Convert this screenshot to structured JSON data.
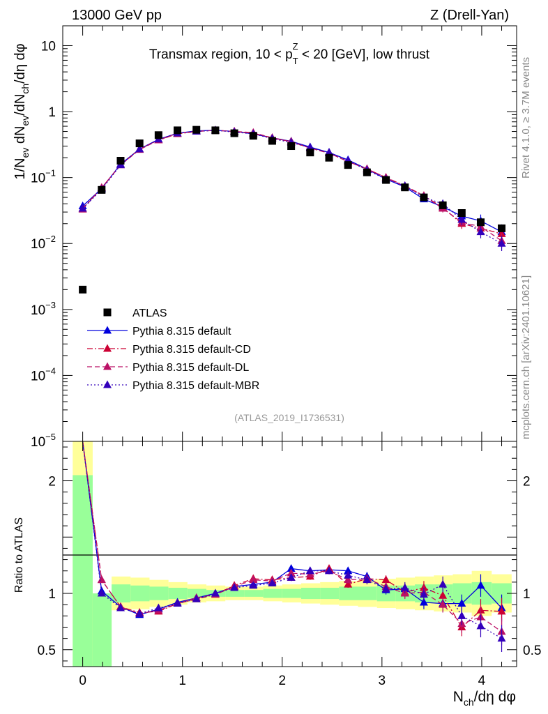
{
  "header": {
    "left": "13000 GeV pp",
    "right": "Z (Drell-Yan)"
  },
  "side_labels": {
    "rivet": "Rivet 4.1.0, ≥ 3.7M events",
    "mcplots": "mcplots.cern.ch [arXiv:2401.10621]"
  },
  "chart_data": [
    {
      "type": "scatter",
      "panel": "main",
      "title": "Transmax region, 10 < p_T^Z < 20 [GeV], low thrust",
      "title_parts": {
        "pre": "Transmax region, 10 < p",
        "sub": "T",
        "sup": "Z",
        "post": " < 20 [GeV], low thrust"
      },
      "analysis_tag": "(ATLAS_2019_I1736531)",
      "ylabel": "1/N_ev dN_ev/dN_ch/dη dφ",
      "ylabel_parts": {
        "a": "1/N",
        "a_sub": "ev",
        "b": " dN",
        "b_sub": "ev",
        "c": "/dN",
        "c_sub": "ch",
        "d": "/dη dφ"
      },
      "yscale": "log",
      "ylim": [
        1e-05,
        20
      ],
      "xlim": [
        -0.2,
        4.35
      ],
      "ytick_labels": [
        {
          "value": 10,
          "base": "10",
          "exp": ""
        },
        {
          "value": 1,
          "base": "1",
          "exp": ""
        },
        {
          "value": 0.1,
          "base": "10",
          "exp": "−1"
        },
        {
          "value": 0.01,
          "base": "10",
          "exp": "−2"
        },
        {
          "value": 0.001,
          "base": "10",
          "exp": "−3"
        },
        {
          "value": 0.0001,
          "base": "10",
          "exp": "−4"
        },
        {
          "value": 1e-05,
          "base": "10",
          "exp": "−5"
        }
      ],
      "legend_position": "lower-left",
      "series": [
        {
          "name": "ATLAS",
          "color": "#000000",
          "marker": "square",
          "line": "none",
          "x": [
            0.0,
            0.19,
            0.38,
            0.57,
            0.76,
            0.95,
            1.14,
            1.33,
            1.52,
            1.71,
            1.9,
            2.09,
            2.28,
            2.47,
            2.66,
            2.85,
            3.04,
            3.23,
            3.42,
            3.61,
            3.8,
            3.99,
            4.2
          ],
          "y": [
            0.002,
            0.065,
            0.18,
            0.33,
            0.44,
            0.52,
            0.53,
            0.52,
            0.47,
            0.43,
            0.36,
            0.3,
            0.24,
            0.2,
            0.155,
            0.12,
            0.092,
            0.071,
            0.05,
            0.038,
            0.029,
            0.021,
            0.017
          ]
        },
        {
          "name": "Pythia 8.315 default",
          "color": "#0000dd",
          "marker": "triangle",
          "line": "solid",
          "x": [
            0.0,
            0.19,
            0.38,
            0.57,
            0.76,
            0.95,
            1.14,
            1.33,
            1.52,
            1.71,
            1.9,
            2.09,
            2.28,
            2.47,
            2.66,
            2.85,
            3.04,
            3.23,
            3.42,
            3.61,
            3.8,
            3.99,
            4.2
          ],
          "y": [
            0.037,
            0.068,
            0.16,
            0.27,
            0.38,
            0.47,
            0.51,
            0.52,
            0.5,
            0.46,
            0.4,
            0.355,
            0.29,
            0.24,
            0.185,
            0.135,
            0.095,
            0.072,
            0.047,
            0.036,
            0.026,
            0.022,
            0.015
          ]
        },
        {
          "name": "Pythia 8.315 default-CD",
          "color": "#cc0033",
          "marker": "triangle",
          "line": "dashdot",
          "x": [
            0.0,
            0.19,
            0.38,
            0.57,
            0.76,
            0.95,
            1.14,
            1.33,
            1.52,
            1.71,
            1.9,
            2.09,
            2.28,
            2.47,
            2.66,
            2.85,
            3.04,
            3.23,
            3.42,
            3.61,
            3.8,
            3.99,
            4.2
          ],
          "y": [
            0.034,
            0.07,
            0.155,
            0.27,
            0.37,
            0.46,
            0.5,
            0.52,
            0.5,
            0.47,
            0.4,
            0.35,
            0.28,
            0.235,
            0.175,
            0.135,
            0.1,
            0.075,
            0.053,
            0.035,
            0.02,
            0.017,
            0.014
          ]
        },
        {
          "name": "Pythia 8.315 default-DL",
          "color": "#bb1166",
          "marker": "triangle",
          "line": "dashed",
          "x": [
            0.0,
            0.19,
            0.38,
            0.57,
            0.76,
            0.95,
            1.14,
            1.33,
            1.52,
            1.71,
            1.9,
            2.09,
            2.28,
            2.47,
            2.66,
            2.85,
            3.04,
            3.23,
            3.42,
            3.61,
            3.8,
            3.99,
            4.2
          ],
          "y": [
            0.033,
            0.07,
            0.155,
            0.265,
            0.37,
            0.47,
            0.5,
            0.52,
            0.5,
            0.48,
            0.4,
            0.35,
            0.28,
            0.235,
            0.175,
            0.135,
            0.1,
            0.073,
            0.053,
            0.034,
            0.021,
            0.018,
            0.011
          ]
        },
        {
          "name": "Pythia 8.315 default-MBR",
          "color": "#3300bb",
          "marker": "triangle",
          "line": "dotted",
          "x": [
            0.0,
            0.19,
            0.38,
            0.57,
            0.76,
            0.95,
            1.14,
            1.33,
            1.52,
            1.71,
            1.9,
            2.09,
            2.28,
            2.47,
            2.66,
            2.85,
            3.04,
            3.23,
            3.42,
            3.61,
            3.8,
            3.99,
            4.2
          ],
          "y": [
            0.034,
            0.066,
            0.155,
            0.27,
            0.38,
            0.47,
            0.5,
            0.52,
            0.49,
            0.46,
            0.39,
            0.34,
            0.285,
            0.24,
            0.18,
            0.13,
            0.095,
            0.075,
            0.05,
            0.04,
            0.023,
            0.015,
            0.01
          ]
        }
      ]
    },
    {
      "type": "scatter",
      "panel": "ratio",
      "ylabel": "Ratio to ATLAS",
      "xlabel": "N_ch/dη dφ",
      "xlabel_parts": {
        "a": "N",
        "a_sub": "ch",
        "b": "/dη dφ"
      },
      "ylim": [
        0.35,
        2.35
      ],
      "xlim": [
        -0.2,
        4.35
      ],
      "xticks": [
        0,
        1,
        2,
        3,
        4
      ],
      "xtick_labels": [
        "0",
        "1",
        "2",
        "3",
        "4"
      ],
      "yticks": [
        0.5,
        1,
        2
      ],
      "ytick_labels": [
        "0.5",
        "1",
        "2"
      ],
      "reference_line": 1,
      "band_colors": {
        "inner": "#99ff99",
        "outer": "#ffff99"
      },
      "bands": {
        "edges": [
          -0.1,
          0.1,
          0.29,
          0.48,
          0.67,
          0.86,
          1.05,
          1.24,
          1.43,
          1.62,
          1.81,
          2.0,
          2.19,
          2.38,
          2.57,
          2.76,
          2.95,
          3.14,
          3.33,
          3.52,
          3.71,
          3.9,
          4.1,
          4.3
        ],
        "inner_lo": [
          0.35,
          0.35,
          0.92,
          0.93,
          0.94,
          0.95,
          0.96,
          0.97,
          0.97,
          0.97,
          0.96,
          0.96,
          0.95,
          0.95,
          0.94,
          0.94,
          0.93,
          0.93,
          0.92,
          0.92,
          0.91,
          0.9,
          0.91
        ],
        "inner_hi": [
          2.05,
          1.0,
          1.08,
          1.07,
          1.06,
          1.05,
          1.04,
          1.03,
          1.03,
          1.03,
          1.04,
          1.04,
          1.05,
          1.05,
          1.06,
          1.06,
          1.07,
          1.07,
          1.08,
          1.08,
          1.09,
          1.1,
          1.09
        ],
        "outer_lo": [
          0.35,
          0.35,
          0.85,
          0.86,
          0.88,
          0.9,
          0.92,
          0.93,
          0.94,
          0.94,
          0.93,
          0.92,
          0.91,
          0.9,
          0.89,
          0.88,
          0.87,
          0.86,
          0.85,
          0.84,
          0.83,
          0.8,
          0.83
        ],
        "outer_hi": [
          2.35,
          1.0,
          1.15,
          1.14,
          1.12,
          1.1,
          1.08,
          1.07,
          1.06,
          1.06,
          1.07,
          1.08,
          1.09,
          1.1,
          1.11,
          1.12,
          1.13,
          1.14,
          1.15,
          1.16,
          1.17,
          1.2,
          1.17
        ]
      },
      "series": [
        {
          "name": "Pythia 8.315 default",
          "x": [
            0.19,
            0.38,
            0.57,
            0.76,
            0.95,
            1.14,
            1.33,
            1.52,
            1.71,
            1.9,
            2.09,
            2.28,
            2.47,
            2.66,
            2.85,
            3.04,
            3.23,
            3.42,
            3.61,
            3.8,
            3.99,
            4.2
          ],
          "y": [
            1.02,
            0.88,
            0.81,
            0.86,
            0.92,
            0.96,
            1.0,
            1.06,
            1.08,
            1.1,
            1.22,
            1.2,
            1.21,
            1.2,
            1.15,
            1.03,
            1.04,
            0.92,
            0.91,
            0.91,
            1.07,
            0.87
          ],
          "err": [
            0.02,
            0.02,
            0.02,
            0.02,
            0.02,
            0.02,
            0.02,
            0.02,
            0.02,
            0.02,
            0.03,
            0.03,
            0.03,
            0.03,
            0.04,
            0.04,
            0.05,
            0.06,
            0.07,
            0.08,
            0.1,
            0.12
          ]
        },
        {
          "name": "Pythia 8.315 default-CD",
          "x": [
            0.19,
            0.38,
            0.57,
            0.76,
            0.95,
            1.14,
            1.33,
            1.52,
            1.71,
            1.9,
            2.09,
            2.28,
            2.47,
            2.66,
            2.85,
            3.04,
            3.23,
            3.42,
            3.61,
            3.8,
            3.99,
            4.2
          ],
          "y": [
            1.12,
            0.88,
            0.83,
            0.84,
            0.91,
            0.95,
            0.99,
            1.07,
            1.13,
            1.12,
            1.14,
            1.15,
            1.22,
            1.08,
            1.13,
            1.12,
            1.01,
            1.05,
            0.98,
            0.7,
            0.85,
            0.84
          ],
          "err": [
            0.02,
            0.02,
            0.02,
            0.02,
            0.02,
            0.02,
            0.02,
            0.02,
            0.02,
            0.02,
            0.03,
            0.03,
            0.03,
            0.03,
            0.04,
            0.04,
            0.05,
            0.06,
            0.07,
            0.08,
            0.1,
            0.12
          ]
        },
        {
          "name": "Pythia 8.315 default-DL",
          "x": [
            0.19,
            0.38,
            0.57,
            0.76,
            0.95,
            1.14,
            1.33,
            1.52,
            1.71,
            1.9,
            2.09,
            2.28,
            2.47,
            2.66,
            2.85,
            3.04,
            3.23,
            3.42,
            3.61,
            3.8,
            3.99,
            4.2
          ],
          "y": [
            1.12,
            0.88,
            0.82,
            0.85,
            0.91,
            0.96,
            0.99,
            1.06,
            1.12,
            1.11,
            1.18,
            1.17,
            1.2,
            1.12,
            1.13,
            1.06,
            1.0,
            1.01,
            0.9,
            0.73,
            0.79,
            0.66
          ],
          "err": [
            0.02,
            0.02,
            0.02,
            0.02,
            0.02,
            0.02,
            0.02,
            0.02,
            0.02,
            0.02,
            0.03,
            0.03,
            0.03,
            0.03,
            0.04,
            0.04,
            0.05,
            0.06,
            0.07,
            0.08,
            0.1,
            0.12
          ]
        },
        {
          "name": "Pythia 8.315 default-MBR",
          "x": [
            0.19,
            0.38,
            0.57,
            0.76,
            0.95,
            1.14,
            1.33,
            1.52,
            1.71,
            1.9,
            2.09,
            2.28,
            2.47,
            2.66,
            2.85,
            3.04,
            3.23,
            3.42,
            3.61,
            3.8,
            3.99,
            4.2
          ],
          "y": [
            1.0,
            0.87,
            0.82,
            0.87,
            0.91,
            0.95,
            1.0,
            1.05,
            1.07,
            1.09,
            1.14,
            1.2,
            1.2,
            1.16,
            1.12,
            1.04,
            1.05,
            0.99,
            1.08,
            0.8,
            0.71,
            0.6
          ],
          "err": [
            0.02,
            0.02,
            0.02,
            0.02,
            0.02,
            0.02,
            0.02,
            0.02,
            0.02,
            0.02,
            0.03,
            0.03,
            0.03,
            0.03,
            0.04,
            0.04,
            0.05,
            0.06,
            0.07,
            0.08,
            0.1,
            0.12
          ]
        }
      ]
    }
  ]
}
